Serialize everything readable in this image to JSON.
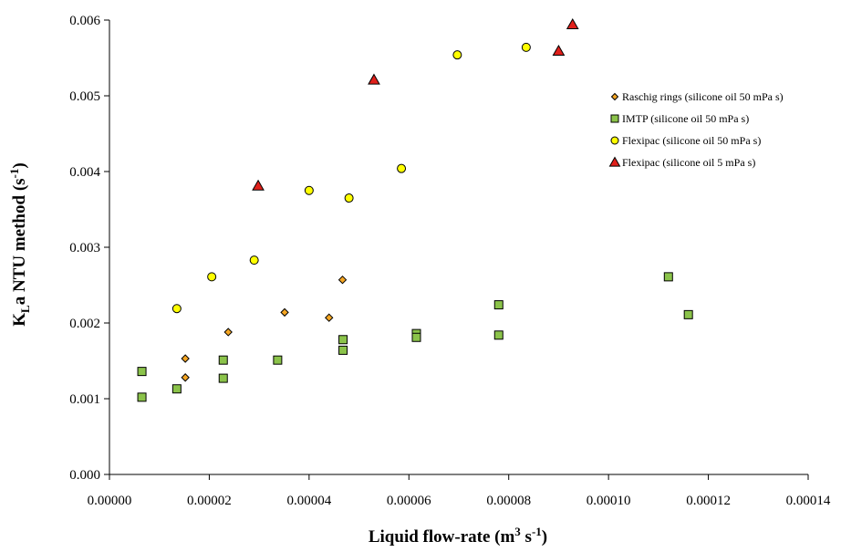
{
  "chart_data": {
    "type": "scatter",
    "xlabel": {
      "main": "Liquid flow-rate (m",
      "sup1": "3",
      "mid": " s",
      "sup2": "-1",
      "end": ")"
    },
    "ylabel": {
      "k": "K",
      "sub": "L",
      "main": "a NTU method (s",
      "sup": "-1",
      "end": ")"
    },
    "xlim": [
      0,
      0.00014
    ],
    "ylim": [
      0,
      0.006
    ],
    "x_ticks": [
      "0.00000",
      "0.00002",
      "0.00004",
      "0.00006",
      "0.00008",
      "0.00010",
      "0.00012",
      "0.00014"
    ],
    "y_ticks": [
      "0.000",
      "0.001",
      "0.002",
      "0.003",
      "0.004",
      "0.005",
      "0.006"
    ],
    "grid": false,
    "legend_position": "right",
    "series": [
      {
        "name": "Raschig rings (silicone oil 50 mPa s)",
        "marker": "diamond",
        "fill": "#F5A623",
        "points": [
          [
            1.52e-05,
            0.00153
          ],
          [
            1.52e-05,
            0.00128
          ],
          [
            2.38e-05,
            0.00188
          ],
          [
            3.51e-05,
            0.00214
          ],
          [
            4.4e-05,
            0.00207
          ],
          [
            4.67e-05,
            0.00257
          ]
        ]
      },
      {
        "name": "IMTP (silicone oil 50 mPa s)",
        "marker": "square",
        "fill": "#8BC34A",
        "points": [
          [
            6.5e-06,
            0.00136
          ],
          [
            6.5e-06,
            0.00102
          ],
          [
            1.35e-05,
            0.00113
          ],
          [
            2.28e-05,
            0.00151
          ],
          [
            2.28e-05,
            0.00127
          ],
          [
            3.37e-05,
            0.00151
          ],
          [
            4.68e-05,
            0.00178
          ],
          [
            4.68e-05,
            0.00164
          ],
          [
            6.15e-05,
            0.00186
          ],
          [
            6.15e-05,
            0.00181
          ],
          [
            7.8e-05,
            0.00224
          ],
          [
            7.8e-05,
            0.00184
          ],
          [
            0.000112,
            0.00261
          ],
          [
            0.000116,
            0.00211
          ]
        ]
      },
      {
        "name": "Flexipac (silicone oil 50 mPa s)",
        "marker": "circle",
        "fill": "#FFFF00",
        "points": [
          [
            1.35e-05,
            0.00219
          ],
          [
            2.05e-05,
            0.00261
          ],
          [
            2.9e-05,
            0.00283
          ],
          [
            4e-05,
            0.00375
          ],
          [
            4.8e-05,
            0.00365
          ],
          [
            5.85e-05,
            0.00404
          ],
          [
            6.97e-05,
            0.00554
          ],
          [
            8.35e-05,
            0.00564
          ]
        ]
      },
      {
        "name": "Flexipac (silicone oil 5 mPa s)",
        "marker": "triangle",
        "fill": "#E0201B",
        "points": [
          [
            2.98e-05,
            0.00381
          ],
          [
            5.3e-05,
            0.00521
          ],
          [
            9e-05,
            0.00559
          ],
          [
            9.28e-05,
            0.00594
          ]
        ]
      }
    ]
  }
}
